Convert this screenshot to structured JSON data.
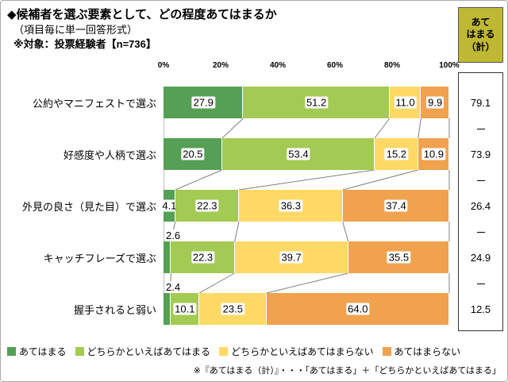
{
  "header": {
    "title": "◆候補者を選ぶ要素として、どの程度あてはまるか",
    "subtitle": "（項目毎に単一回答形式）",
    "target_note": "※対象：投票経験者【n=736】"
  },
  "summary_box": {
    "header_lines": [
      "あて",
      "はまる",
      "（計）"
    ]
  },
  "chart_data": {
    "type": "bar",
    "stacked": true,
    "orientation": "horizontal",
    "axis_ticks": [
      "0%",
      "20%",
      "40%",
      "60%",
      "80%",
      "100%"
    ],
    "xlim": [
      0,
      100
    ],
    "categories": [
      "公約やマニフェストで選ぶ",
      "好感度や人柄で選ぶ",
      "外見の良さ（見た目）で選ぶ",
      "キャッチフレーズで選ぶ",
      "握手されると弱い"
    ],
    "series": [
      {
        "name": "あてはまる",
        "color": "#55a054",
        "values": [
          27.9,
          20.5,
          4.1,
          2.6,
          2.4
        ]
      },
      {
        "name": "どちらかといえばあてはまる",
        "color": "#a3ca52",
        "values": [
          51.2,
          53.4,
          22.3,
          22.3,
          10.1
        ]
      },
      {
        "name": "どちらかといえばあてはまらない",
        "color": "#ffd965",
        "values": [
          11.0,
          15.2,
          36.3,
          39.7,
          23.5
        ]
      },
      {
        "name": "あてはまらない",
        "color": "#f0a24e",
        "values": [
          9.9,
          10.9,
          37.4,
          35.5,
          64.0
        ]
      }
    ],
    "totals": {
      "label": "あてはまる（計）",
      "values": [
        79.1,
        73.9,
        26.4,
        24.9,
        12.5
      ]
    },
    "label_overrides": {
      "3-0": "above",
      "4-0": "above"
    },
    "legend_position": "bottom"
  },
  "footer_note": "※『あてはまる（計）』・・・「あてはまる」＋「どちらかといえばあてはまる」",
  "colors": {
    "summary_header_bg": "#bfb832",
    "connector": "#808080"
  }
}
